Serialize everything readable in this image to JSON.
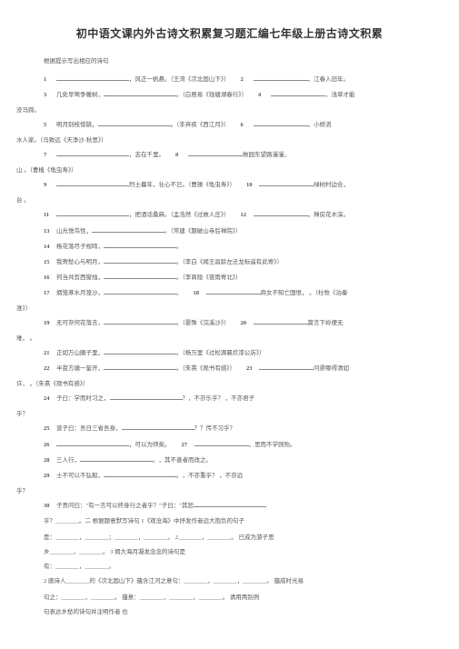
{
  "title": "初中语文课内外古诗文积累复习题汇编七年级上册古诗文积累",
  "instruction": "根据提示写出相应的诗句",
  "lines": [
    {
      "num": "1",
      "pre": "",
      "mid": "，风正一帆悬。（王湾《次北固山下》）",
      "num2": "2",
      "tail2": "，江春入旧年。"
    },
    {
      "num": "3",
      "pre": "几处早莺争暖树，",
      "mid": "。（白居易《钱塘湖春行》）",
      "num2": "4",
      "tail2": "，浅草才能"
    },
    {
      "cont": "没马蹄。"
    },
    {
      "num": "5",
      "pre": "明月别枝惊鹊，",
      "mid": "。（辛弃疾《西江月》）",
      "num2": "6",
      "tail2": "，小桥流"
    },
    {
      "cont": "水人家。（马致远《天净沙·秋思》）"
    },
    {
      "num": "7",
      "pre": "",
      "mid": "，志在千里。",
      "num2": "8",
      "tail2": "故园东望路漫漫，"
    },
    {
      "cont": "山  。（曹植《龟虫寿》）"
    },
    {
      "num": "9",
      "pre": "",
      "mid": "烈士暮年，壮心不已。（曹操《龟虫寿》）",
      "num2": "10",
      "tail2": "绿树村边合，"
    },
    {
      "cont": "  台  。"
    },
    {
      "num": "11",
      "pre": "",
      "mid": "，把酒话桑麻。（孟浩然《过故人庄》）",
      "num2": "12",
      "tail2": "，禅房花木深。"
    },
    {
      "num": "13",
      "pre": "山光悦鸟性，",
      "mid": "。（常建《题破山寺后禅院》）",
      "num2": "",
      "tail2": ""
    },
    {
      "num": "14",
      "pre": "杨花落尽子规啼，",
      "mid": "。",
      "num2": "",
      "tail2": ""
    },
    {
      "num": "15",
      "pre": "我寄愁心与明月，",
      "mid": "。（李白《闻王昌龄左迁龙标遥有此寄》）",
      "num2": "",
      "tail2": ""
    },
    {
      "num": "16",
      "pre": "何当共剪西窗烛，",
      "mid": "。（李商隐《夜雨寄北》）",
      "num2": "",
      "tail2": ""
    },
    {
      "num": "17",
      "pre": "烟笼寒水月笼沙，",
      "mid": "。",
      "num2": "18",
      "tail2": "商女不知亡国恨，   。（杜牧《泊秦"
    },
    {
      "cont": "淮》）"
    },
    {
      "num": "19",
      "pre": "无可奈何花落去，",
      "mid": "。（晏殊《浣溪沙》）",
      "num2": "20",
      "tail2": "莫言下岭便无"
    },
    {
      "cont": "难，  。"
    },
    {
      "num": "21",
      "pre": "正如万山圈子里，",
      "mid": "。（杨万里《过松源晨炊漆公店》）",
      "num2": "",
      "tail2": ""
    },
    {
      "num": "22",
      "pre": "半亩方塘一鉴开，",
      "mid": "。（朱熹《观书有感》）",
      "num2": "23",
      "tail2": "问渠哪得清如"
    },
    {
      "cont": "许，  。（朱熹《观书有感》）"
    },
    {
      "num": "24",
      "pre": "子曰：学而时习之，",
      "mid": "？",
      "num2": "",
      "tail2": "，不亦乐乎？   ，不亦君子"
    },
    {
      "cont": "乎？"
    },
    {
      "num": "25",
      "pre": "曾子曰：吾日三省吾身，",
      "mid": "？",
      "num2": "",
      "tail2": "？传不习乎？"
    },
    {
      "num": "26",
      "pre": "",
      "mid": "，可以为师矣。",
      "num2": "27",
      "tail2": "，思而不学则殆。"
    },
    {
      "num": "28",
      "pre": "三人行，",
      "mid": "。",
      "num2": "",
      "tail2": "，其不善者而改之。"
    },
    {
      "num": "29",
      "pre": "士不可以不弘毅，",
      "mid": "。",
      "num2": "",
      "tail2": "，不亦重乎？   ，不亦远"
    },
    {
      "cont": "乎？"
    },
    {
      "num": "30",
      "pre": "子贡问曰：\"有一言可以终身行之者乎？\"子曰：\"其恕",
      "mid": "",
      "num2": "",
      "tail2": ""
    }
  ],
  "sect2_label": "乎？________。二 根据题意默写诗句 1《观沧海》中抒发作者远大抱负的句子",
  "sect2_lines": [
    "是：________，________；________，________。 2________，________。 已成为游子思",
    "乡________，________。 3 揭大海月凝发念念的诗句是",
    "有：________，________。"
  ],
  "sect3_label": "2  唐诗人________的《次北固山下》蕴含江河之意句：________，________，________。  蕴成时光易",
  "sect3_tail": "句之：________，________。  蕴意：________，________，________。  请用两别例",
  "footer": "句表达乡愁的诗句并注明作者 也"
}
